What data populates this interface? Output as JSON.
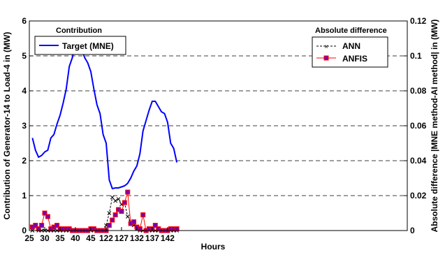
{
  "chart_data": {
    "type": "line",
    "xlabel": "Hours",
    "ylabel_left": "Contribution of Generator-14 to Load-4 in (MW)",
    "ylabel_right": "Absolute difference |MNE method-AI method| in (MW)",
    "xlim": [
      25,
      148
    ],
    "ylim_left": [
      0,
      6
    ],
    "ylim_right": [
      0,
      0.12
    ],
    "xticks": [
      "25",
      "30",
      "35",
      "40",
      "45",
      "122",
      "127",
      "132",
      "137",
      "142"
    ],
    "yticks_left": [
      "0",
      "1",
      "2",
      "3",
      "4",
      "5",
      "6"
    ],
    "yticks_right": [
      "0",
      "0.02",
      "0.04",
      "0.06",
      "0.08",
      "0.1",
      "0.12"
    ],
    "grid": "horizontal dashed",
    "legend_left": {
      "title": "Contribution",
      "entries": [
        "Target (MNE)"
      ],
      "placement": "top-left"
    },
    "legend_right": {
      "title": "Absolute difference",
      "entries": [
        "ANN",
        "ANFIS"
      ],
      "placement": "top-right"
    },
    "series": [
      {
        "name": "Target (MNE)",
        "axis": "left",
        "color": "#0000ff",
        "x": [
          26,
          27,
          28,
          29,
          30,
          31,
          32,
          33,
          34,
          35,
          36,
          37,
          38,
          39,
          40,
          41,
          42,
          43,
          44,
          45,
          46,
          47,
          48,
          49,
          50,
          51,
          52,
          53,
          54,
          55,
          56,
          57,
          58,
          59,
          60,
          61,
          62,
          63,
          64,
          65,
          66,
          67,
          68,
          69,
          70,
          71,
          72,
          73
        ],
        "values": [
          2.65,
          2.3,
          2.1,
          2.15,
          2.25,
          2.3,
          2.65,
          2.75,
          3.05,
          3.3,
          3.65,
          4.05,
          4.7,
          4.95,
          5.35,
          5.4,
          5.2,
          4.95,
          4.8,
          4.55,
          4.05,
          3.6,
          3.35,
          2.75,
          2.5,
          1.45,
          1.2,
          1.22,
          1.22,
          1.25,
          1.28,
          1.35,
          1.5,
          1.7,
          1.85,
          2.2,
          2.85,
          3.15,
          3.45,
          3.7,
          3.7,
          3.55,
          3.4,
          3.35,
          3.1,
          2.5,
          2.35,
          1.95
        ]
      },
      {
        "name": "ANN",
        "axis": "right",
        "color": "#000000",
        "x": [
          26,
          27,
          28,
          29,
          30,
          31,
          32,
          33,
          34,
          35,
          36,
          37,
          38,
          39,
          40,
          41,
          42,
          43,
          44,
          45,
          46,
          47,
          48,
          49,
          50,
          51,
          52,
          53,
          54,
          55,
          56,
          57,
          58,
          59,
          60,
          61,
          62,
          63,
          64,
          65,
          66,
          67,
          68,
          69,
          70,
          71,
          72,
          73
        ],
        "values": [
          0.0,
          0.002,
          0.0,
          0.0,
          0.0,
          0.0,
          0.0,
          0.0,
          0.0,
          0.0,
          0.0,
          0.0,
          0.0,
          0.0,
          0.0,
          0.0,
          0.0,
          0.0,
          0.0,
          0.0,
          0.0,
          0.0,
          0.0,
          0.0,
          0.003,
          0.01,
          0.019,
          0.017,
          0.018,
          0.015,
          0.016,
          0.008,
          0.005,
          0.003,
          0.001,
          0.0,
          0.0,
          0.0,
          0.0,
          0.0,
          0.0,
          0.0,
          0.0,
          0.0,
          0.0,
          0.0,
          0.0,
          0.0
        ]
      },
      {
        "name": "ANFIS",
        "axis": "right",
        "color": "#ff0000",
        "marker_color": "#7a00a8",
        "x": [
          26,
          27,
          28,
          29,
          30,
          31,
          32,
          33,
          34,
          35,
          36,
          37,
          38,
          39,
          40,
          41,
          42,
          43,
          44,
          45,
          46,
          47,
          48,
          49,
          50,
          51,
          52,
          53,
          54,
          55,
          56,
          57,
          58,
          59,
          60,
          61,
          62,
          63,
          64,
          65,
          66,
          67,
          68,
          69,
          70,
          71,
          72,
          73
        ],
        "values": [
          0.002,
          0.003,
          0.001,
          0.003,
          0.01,
          0.008,
          0.001,
          0.002,
          0.003,
          0.001,
          0.001,
          0.001,
          0.001,
          0.0,
          0.0,
          0.0,
          0.0,
          0.0,
          0.0,
          0.001,
          0.001,
          0.0,
          0.0,
          0.0,
          0.0,
          0.003,
          0.006,
          0.009,
          0.012,
          0.011,
          0.016,
          0.022,
          0.004,
          0.005,
          0.002,
          0.001,
          0.009,
          0.0,
          0.001,
          0.001,
          0.003,
          0.001,
          0.0,
          0.0,
          0.0,
          0.001,
          0.001,
          0.001
        ]
      }
    ]
  }
}
